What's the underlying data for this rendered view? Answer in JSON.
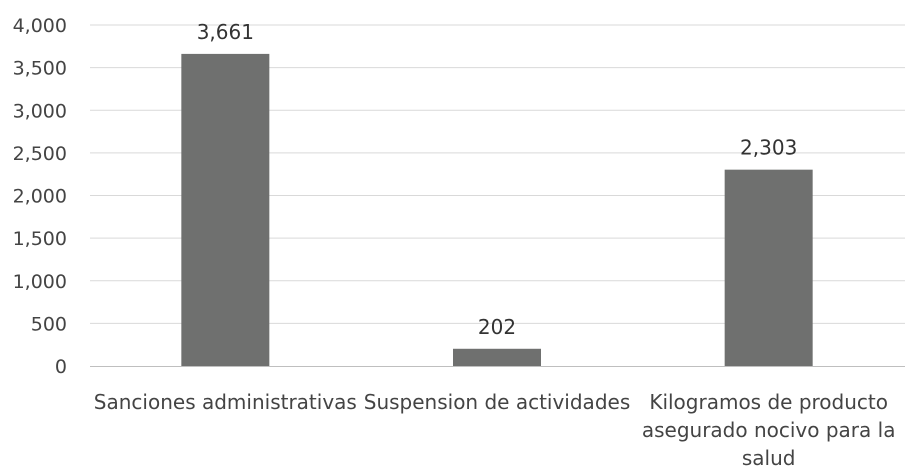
{
  "chart_data": {
    "type": "bar",
    "categories": [
      [
        "Sanciones  administrativas"
      ],
      [
        "Suspension de actividades"
      ],
      [
        "Kilogramos de producto",
        "asegurado nocivo para la",
        "salud"
      ]
    ],
    "values": [
      3661,
      202,
      2303
    ],
    "value_labels": [
      "3,661",
      "202",
      "2,303"
    ],
    "y_ticks": [
      "0",
      "500",
      "1,000",
      "1,500",
      "2,000",
      "2,500",
      "3,000",
      "3,500",
      "4,000"
    ],
    "ylim": [
      0,
      4000
    ],
    "grid": true,
    "legend": "none",
    "title": "",
    "xlabel": "",
    "ylabel": "",
    "colors": {
      "bar": "#6f706f",
      "grid": "#d9d9d9",
      "axis": "#bfbfbf",
      "text": "#444444"
    }
  }
}
